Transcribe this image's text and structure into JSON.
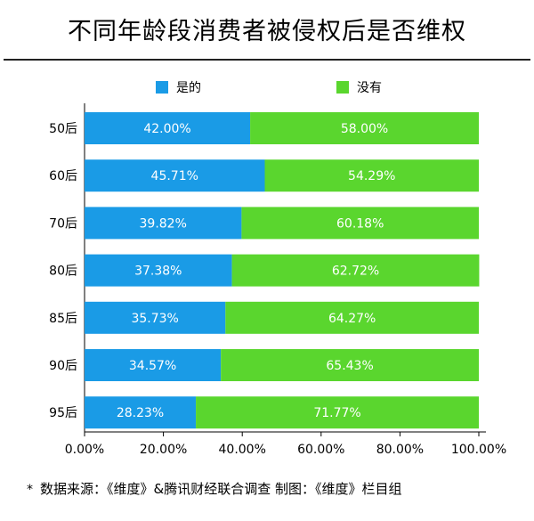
{
  "title": "不同年龄段消费者被侵权后是否维权",
  "footnote_mark": "*",
  "footnote": "数据来源：《维度》&腾讯财经联合调查   制图：《维度》栏目组",
  "colors": {
    "yes": "#1a9be6",
    "no": "#5ad62e"
  },
  "chart_data": {
    "type": "bar",
    "orientation": "horizontal",
    "stacked": true,
    "title": "不同年龄段消费者被侵权后是否维权",
    "categories": [
      "50后",
      "60后",
      "70后",
      "80后",
      "85后",
      "90后",
      "95后"
    ],
    "series": [
      {
        "name": "是的",
        "values": [
          42.0,
          45.71,
          39.82,
          37.38,
          35.73,
          34.57,
          28.23
        ],
        "labels": [
          "42.00%",
          "45.71%",
          "39.82%",
          "37.38%",
          "35.73%",
          "34.57%",
          "28.23%"
        ]
      },
      {
        "name": "没有",
        "values": [
          58.0,
          54.29,
          60.18,
          62.72,
          64.27,
          65.43,
          71.77
        ],
        "labels": [
          "58.00%",
          "54.29%",
          "60.18%",
          "62.72%",
          "64.27%",
          "65.43%",
          "71.77%"
        ]
      }
    ],
    "xlim": [
      0,
      100
    ],
    "xticks": [
      0,
      20,
      40,
      60,
      80,
      100
    ],
    "xtick_labels": [
      "0.00%",
      "20.00%",
      "40.00%",
      "60.00%",
      "80.00%",
      "100.00%"
    ],
    "legend": "top",
    "grid": false
  }
}
